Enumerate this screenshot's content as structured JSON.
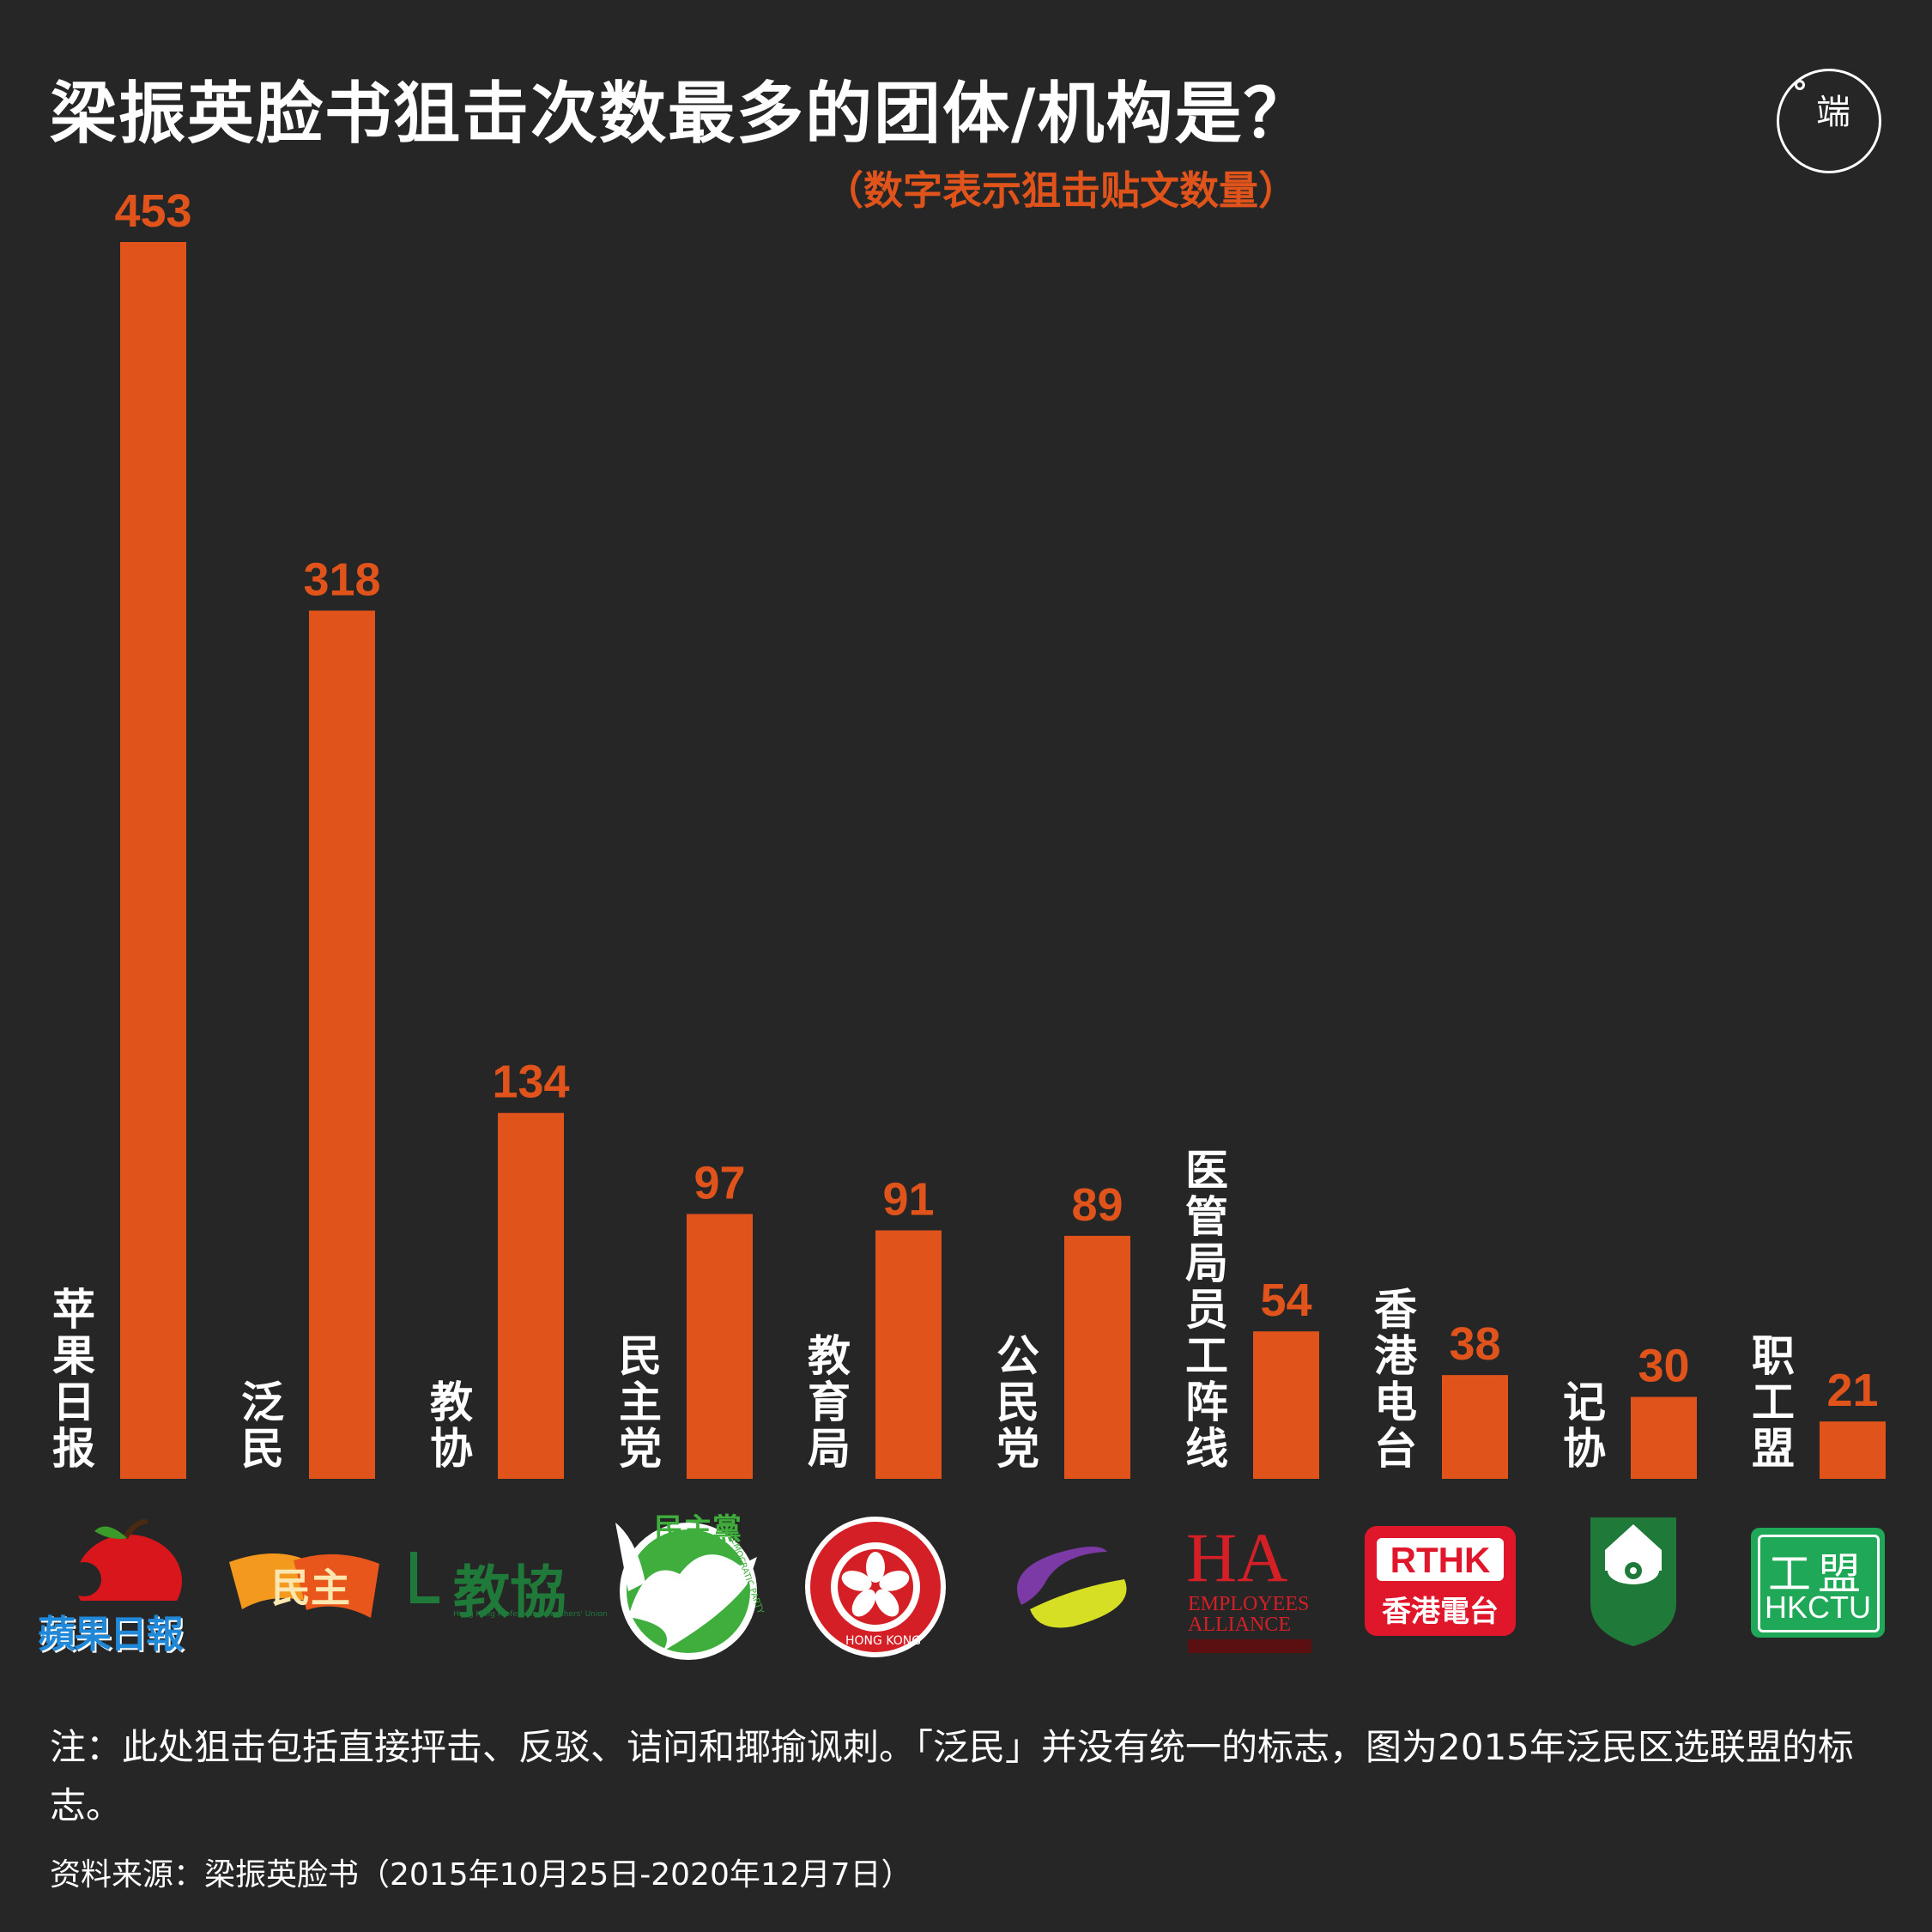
{
  "header": {
    "title": "梁振英脸书狙击次数最多的团体/机构是？",
    "subtitle": "（数字表示狙击贴文数量）",
    "brand": "端"
  },
  "colors": {
    "bar": "#e0531b",
    "background": "#262626",
    "text": "#ffffff"
  },
  "chart_data": {
    "type": "bar",
    "categories": [
      "苹果日报",
      "泛民",
      "教协",
      "民主党",
      "教育局",
      "公民党",
      "医管局员工阵线",
      "香港电台",
      "记协",
      "职工盟"
    ],
    "values": [
      453,
      318,
      134,
      97,
      91,
      89,
      54,
      38,
      30,
      21
    ],
    "value_labels": [
      "453",
      "318",
      "134",
      "97",
      "91",
      "89",
      "54",
      "38",
      "30",
      "21"
    ],
    "ylim": [
      0,
      453
    ],
    "grid": false,
    "legend": "none"
  },
  "logos": {
    "apple": "蘋果日報",
    "pandemocrats": "民主",
    "hkptu": "教協",
    "hkptu_en": "Hong Kong Professional Teachers' Union",
    "dp": "民主黨",
    "dp_en": "DEMOCRATIC PARTY",
    "edb": "HONG KONG",
    "ha_main": "HA",
    "ha_sub1": "EMPLOYEES",
    "ha_sub2": "ALLIANCE",
    "rthk_en": "RTHK",
    "rthk_zh": "香港電台",
    "hkctu_zh": "工盟",
    "hkctu_en": "HKCTU"
  },
  "footer": {
    "note": "注：此处狙击包括直接抨击、反驳、诘问和揶揄讽刺。「泛民」并没有统一的标志，图为2015年泛民区选联盟的标志。",
    "source": "资料来源：梁振英脸书（2015年10月25日-2020年12月7日）"
  }
}
